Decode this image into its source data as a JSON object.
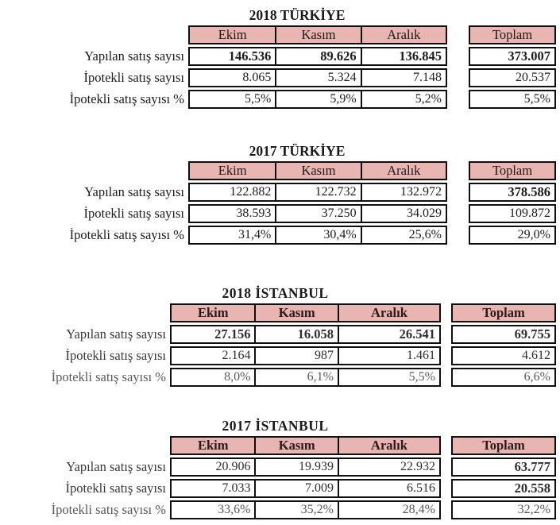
{
  "page": {
    "background": "#ffffff",
    "header_bg_color": "#e8b5b2",
    "border_color": "#0e0e0e",
    "text_color": "#1c1c1c"
  },
  "chart_data": [
    {
      "type": "table",
      "title": "2018 TÜRKİYE",
      "columns": [
        "Ekim",
        "Kasım",
        "Aralık",
        "Toplam"
      ],
      "rows": [
        {
          "label": "Yapılan satış sayısı",
          "values": [
            "146.536",
            "89.626",
            "136.845",
            "373.007"
          ]
        },
        {
          "label": "İpotekli satış sayısı",
          "values": [
            "8.065",
            "5.324",
            "7.148",
            "20.537"
          ]
        },
        {
          "label": "İpotekli satış sayısı %",
          "values": [
            "5,5%",
            "5,9%",
            "5,2%",
            "5,5%"
          ]
        }
      ]
    },
    {
      "type": "table",
      "title": "2017 TÜRKİYE",
      "columns": [
        "Ekim",
        "Kasım",
        "Aralık",
        "Toplam"
      ],
      "rows": [
        {
          "label": "Yapılan satış sayısı",
          "values": [
            "122.882",
            "122.732",
            "132.972",
            "378.586"
          ]
        },
        {
          "label": "İpotekli satış sayısı",
          "values": [
            "38.593",
            "37.250",
            "34.029",
            "109.872"
          ]
        },
        {
          "label": "İpotekli satış sayısı %",
          "values": [
            "31,4%",
            "30,4%",
            "25,6%",
            "29,0%"
          ]
        }
      ]
    },
    {
      "type": "table",
      "title": "2018 İSTANBUL",
      "columns": [
        "Ekim",
        "Kasım",
        "Aralık",
        "Toplam"
      ],
      "rows": [
        {
          "label": "Yapılan satış sayısı",
          "values": [
            "27.156",
            "16.058",
            "26.541",
            "69.755"
          ]
        },
        {
          "label": "İpotekli satış sayısı",
          "values": [
            "2.164",
            "987",
            "1.461",
            "4.612"
          ]
        },
        {
          "label": "İpotekli satış sayısı %",
          "values": [
            "8,0%",
            "6,1%",
            "5,5%",
            "6,6%"
          ]
        }
      ]
    },
    {
      "type": "table",
      "title": "2017 İSTANBUL",
      "columns": [
        "Ekim",
        "Kasım",
        "Aralık",
        "Toplam"
      ],
      "rows": [
        {
          "label": "Yapılan satış sayısı",
          "values": [
            "20.906",
            "19.939",
            "22.932",
            "63.777"
          ]
        },
        {
          "label": "İpotekli satış sayısı",
          "values": [
            "7.033",
            "7.009",
            "6.516",
            "20.558"
          ]
        },
        {
          "label": "İpotekli satış sayısı %",
          "values": [
            "33,6%",
            "35,2%",
            "28,4%",
            "32,2%"
          ]
        }
      ]
    }
  ],
  "tables": [
    {
      "id": "table-2018-turkiye",
      "variant": "a",
      "title": "2018 TÜRKİYE",
      "columns": [
        "Ekim",
        "Kasım",
        "Aralık"
      ],
      "total_label": "Toplam",
      "rows": [
        {
          "label": "Yapılan satış sayısı",
          "values": [
            "146.536",
            "89.626",
            "136.845"
          ],
          "total": "373.007",
          "bold": "all"
        },
        {
          "label": "İpotekli satış sayısı",
          "values": [
            "8.065",
            "5.324",
            "7.148"
          ],
          "total": "20.537",
          "bold": "none"
        },
        {
          "label": "İpotekli satış sayısı %",
          "values": [
            "5,5%",
            "5,9%",
            "5,2%"
          ],
          "total": "5,5%",
          "bold": "none"
        }
      ]
    },
    {
      "id": "table-2017-turkiye",
      "variant": "a",
      "title": "2017 TÜRKİYE",
      "columns": [
        "Ekim",
        "Kasım",
        "Aralık"
      ],
      "total_label": "Toplam",
      "rows": [
        {
          "label": "Yapılan satış sayısı",
          "values": [
            "122.882",
            "122.732",
            "132.972"
          ],
          "total": "378.586",
          "bold": "total"
        },
        {
          "label": "İpotekli satış sayısı",
          "values": [
            "38.593",
            "37.250",
            "34.029"
          ],
          "total": "109.872",
          "bold": "none"
        },
        {
          "label": "İpotekli satış sayısı %",
          "values": [
            "31,4%",
            "30,4%",
            "25,6%"
          ],
          "total": "29,0%",
          "bold": "none"
        }
      ]
    },
    {
      "id": "table-2018-istanbul",
      "variant": "b",
      "title": "2018 İSTANBUL",
      "columns": [
        "Ekim",
        "Kasım",
        "Aralık"
      ],
      "total_label": "Toplam",
      "rows": [
        {
          "label": "Yapılan satış sayısı",
          "values": [
            "27.156",
            "16.058",
            "26.541"
          ],
          "total": "69.755",
          "bold": "all"
        },
        {
          "label": "İpotekli satış sayısı",
          "values": [
            "2.164",
            "987",
            "1.461"
          ],
          "total": "4.612",
          "bold": "none"
        },
        {
          "label": "İpotekli satış sayısı %",
          "values": [
            "8,0%",
            "6,1%",
            "5,5%"
          ],
          "total": "6,6%",
          "bold": "none"
        }
      ]
    },
    {
      "id": "table-2017-istanbul",
      "variant": "b",
      "title": "2017 İSTANBUL",
      "columns": [
        "Ekim",
        "Kasım",
        "Aralık"
      ],
      "total_label": "Toplam",
      "rows": [
        {
          "label": "Yapılan satış sayısı",
          "values": [
            "20.906",
            "19.939",
            "22.932"
          ],
          "total": "63.777",
          "bold": "total"
        },
        {
          "label": "İpotekli satış sayısı",
          "values": [
            "7.033",
            "7.009",
            "6.516"
          ],
          "total": "20.558",
          "bold": "total"
        },
        {
          "label": "İpotekli satış sayısı %",
          "values": [
            "33,6%",
            "35,2%",
            "28,4%"
          ],
          "total": "32,2%",
          "bold": "none"
        }
      ]
    }
  ]
}
